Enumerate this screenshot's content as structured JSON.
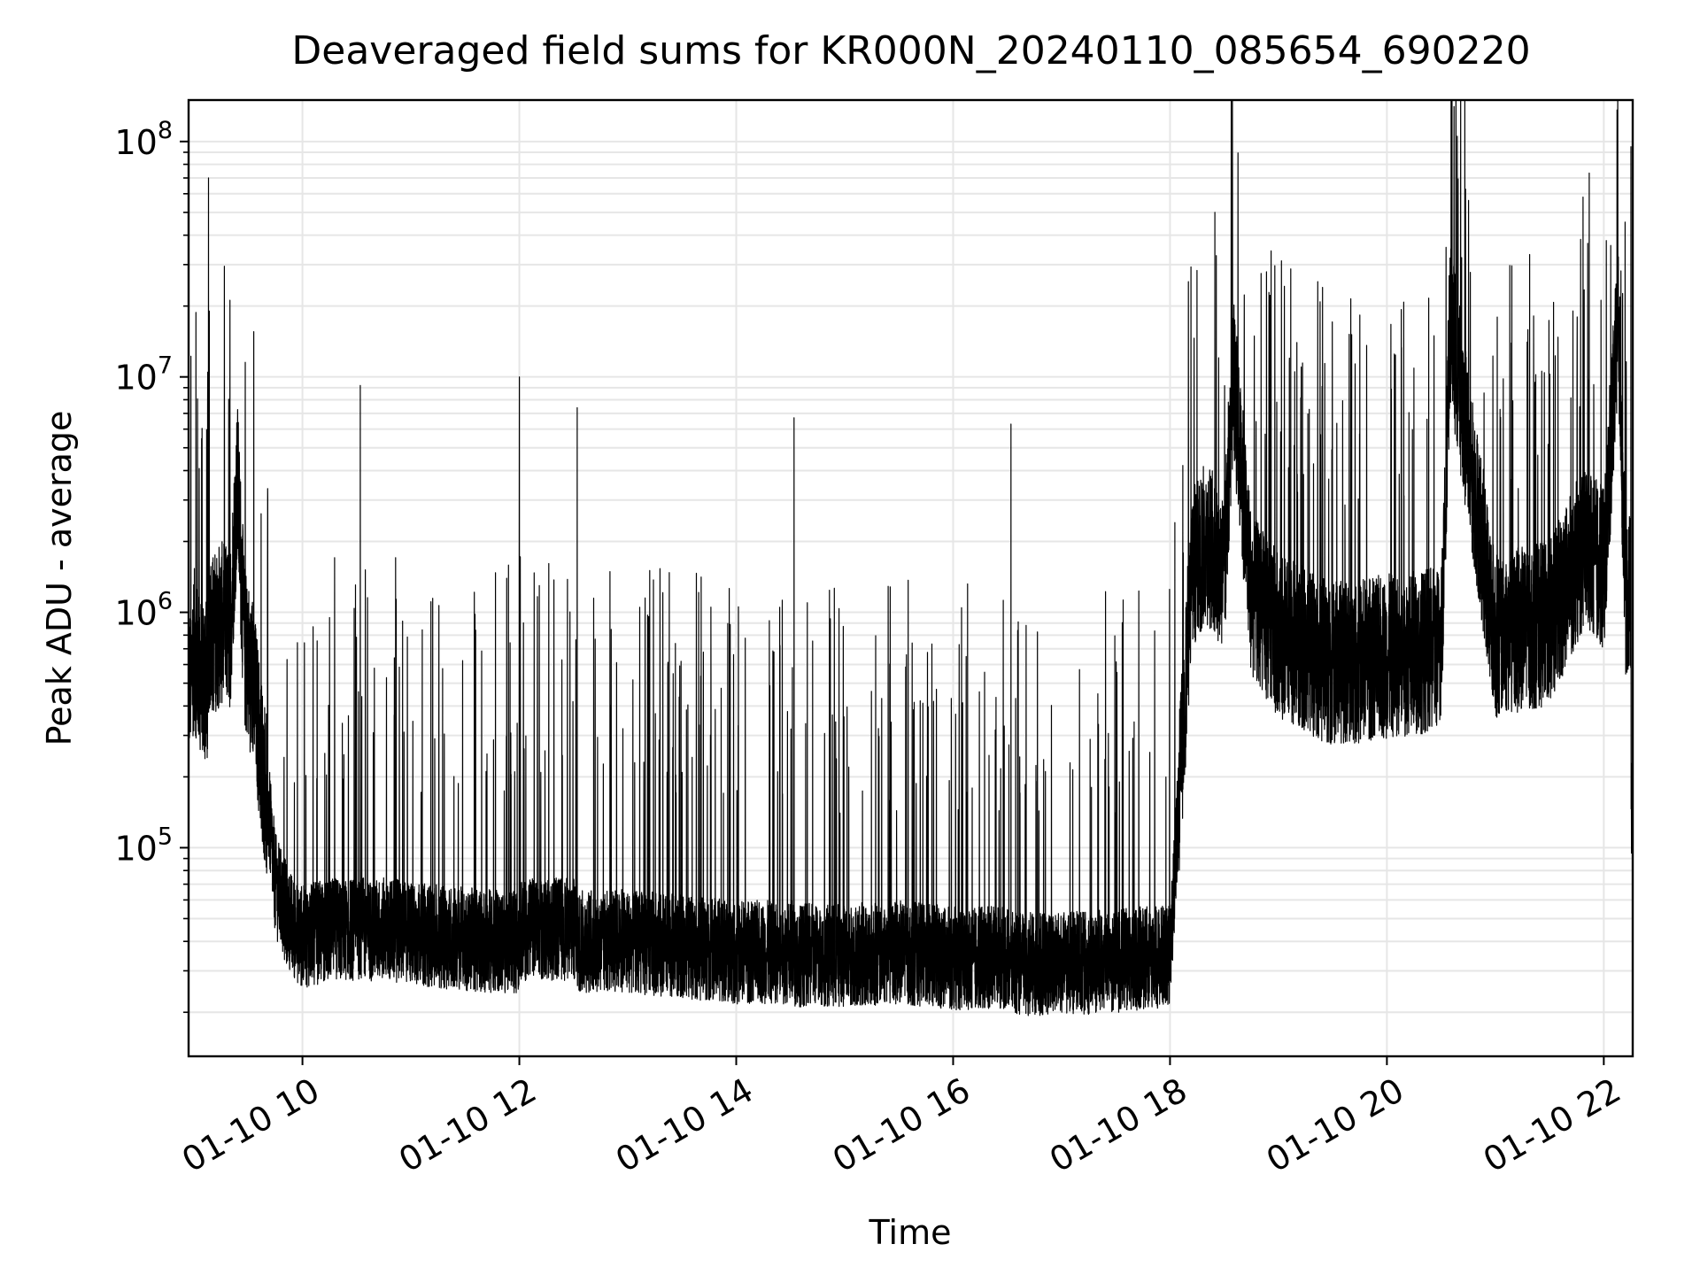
{
  "chart_data": {
    "type": "line",
    "title": "Deaveraged field sums for KR000N_20240110_085654_690220",
    "xlabel": "Time",
    "ylabel": "Peak ADU - average",
    "x_axis": {
      "kind": "datetime",
      "range": [
        "2024-01-10 08:57",
        "2024-01-10 22:16"
      ],
      "ticks": [
        "2024-01-10 10:00",
        "2024-01-10 12:00",
        "2024-01-10 14:00",
        "2024-01-10 16:00",
        "2024-01-10 18:00",
        "2024-01-10 20:00",
        "2024-01-10 22:00"
      ],
      "tick_labels": [
        "01-10 10",
        "01-10 12",
        "01-10 14",
        "01-10 16",
        "01-10 18",
        "01-10 20",
        "01-10 22"
      ],
      "tick_label_rotation_deg": 30
    },
    "y_axis": {
      "scale": "log",
      "range": [
        13000,
        150000000
      ],
      "major_ticks": [
        100000,
        1000000,
        10000000,
        100000000
      ],
      "tick_labels": [
        {
          "base": "10",
          "exp": "5"
        },
        {
          "base": "10",
          "exp": "6"
        },
        {
          "base": "10",
          "exp": "7"
        },
        {
          "base": "10",
          "exp": "8"
        }
      ]
    },
    "grid": {
      "major": true,
      "minor_y": true,
      "color": "#e6e6e6"
    },
    "line_color": "#000000",
    "legend": "none",
    "series": [
      {
        "points": [
          [
            "2024-01-10 08:57",
            450000
          ],
          [
            "2024-01-10 09:00",
            700000
          ],
          [
            "2024-01-10 09:05",
            500000
          ],
          [
            "2024-01-10 09:08",
            70000000
          ],
          [
            "2024-01-10 09:10",
            800000
          ],
          [
            "2024-01-10 09:15",
            900000
          ],
          [
            "2024-01-10 09:20",
            850000
          ],
          [
            "2024-01-10 09:24",
            3700000
          ],
          [
            "2024-01-10 09:28",
            700000
          ],
          [
            "2024-01-10 09:33",
            500000
          ],
          [
            "2024-01-10 09:37",
            250000
          ],
          [
            "2024-01-10 09:41",
            150000
          ],
          [
            "2024-01-10 09:45",
            70000
          ],
          [
            "2024-01-10 09:50",
            55000
          ],
          [
            "2024-01-10 09:55",
            45000
          ],
          [
            "2024-01-10 10:00",
            42000
          ],
          [
            "2024-01-10 10:20",
            45000
          ],
          [
            "2024-01-10 10:32",
            9200000
          ],
          [
            "2024-01-10 10:45",
            45000
          ],
          [
            "2024-01-10 11:15",
            42000
          ],
          [
            "2024-01-10 11:45",
            40000
          ],
          [
            "2024-01-10 12:00",
            10000000
          ],
          [
            "2024-01-10 12:15",
            45000
          ],
          [
            "2024-01-10 12:32",
            7400000
          ],
          [
            "2024-01-10 13:00",
            40000
          ],
          [
            "2024-01-10 13:30",
            38000
          ],
          [
            "2024-01-10 14:00",
            36000
          ],
          [
            "2024-01-10 14:32",
            6700000
          ],
          [
            "2024-01-10 15:00",
            35000
          ],
          [
            "2024-01-10 15:30",
            36000
          ],
          [
            "2024-01-10 16:00",
            34000
          ],
          [
            "2024-01-10 16:32",
            6300000
          ],
          [
            "2024-01-10 17:00",
            32000
          ],
          [
            "2024-01-10 17:30",
            33000
          ],
          [
            "2024-01-10 18:00",
            35000
          ],
          [
            "2024-01-10 18:08",
            400000
          ],
          [
            "2024-01-10 18:12",
            1500000
          ],
          [
            "2024-01-10 18:20",
            2000000
          ],
          [
            "2024-01-10 18:30",
            1500000
          ],
          [
            "2024-01-10 18:35",
            10200000
          ],
          [
            "2024-01-10 18:45",
            1200000
          ],
          [
            "2024-01-10 19:00",
            800000
          ],
          [
            "2024-01-10 19:30",
            600000
          ],
          [
            "2024-01-10 20:00",
            650000
          ],
          [
            "2024-01-10 20:30",
            700000
          ],
          [
            "2024-01-10 20:35",
            17500000
          ],
          [
            "2024-01-10 21:00",
            800000
          ],
          [
            "2024-01-10 21:30",
            900000
          ],
          [
            "2024-01-10 21:50",
            2000000
          ],
          [
            "2024-01-10 22:00",
            1500000
          ],
          [
            "2024-01-10 22:08",
            18000000
          ],
          [
            "2024-01-10 22:12",
            1200000
          ],
          [
            "2024-01-10 22:15",
            95000000
          ],
          [
            "2024-01-10 22:16",
            180000
          ]
        ]
      }
    ]
  }
}
